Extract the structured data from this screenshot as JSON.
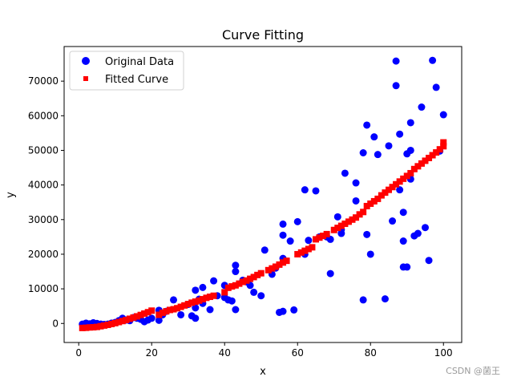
{
  "chart_data": {
    "type": "scatter",
    "title": "Curve Fitting",
    "xlabel": "x",
    "ylabel": "y",
    "xlim": [
      -4,
      105
    ],
    "ylim": [
      -5500,
      80000
    ],
    "x_ticks": [
      0,
      20,
      40,
      60,
      80,
      100
    ],
    "y_ticks": [
      0,
      10000,
      20000,
      30000,
      40000,
      50000,
      60000,
      70000
    ],
    "y_tick_labels": [
      "0",
      "10000",
      "20000",
      "30000",
      "40000",
      "50000",
      "60000",
      "70000"
    ],
    "legend_position": "top-left",
    "series": [
      {
        "name": "Original Data",
        "marker": "circle",
        "color": "#0000ff",
        "points": [
          [
            1,
            -200
          ],
          [
            2,
            100
          ],
          [
            3,
            -100
          ],
          [
            4,
            200
          ],
          [
            5,
            0
          ],
          [
            6,
            -200
          ],
          [
            7,
            -300
          ],
          [
            8,
            -200
          ],
          [
            9,
            100
          ],
          [
            10,
            300
          ],
          [
            11,
            800
          ],
          [
            12,
            1500
          ],
          [
            13,
            1000
          ],
          [
            14,
            800
          ],
          [
            15,
            1700
          ],
          [
            16,
            1500
          ],
          [
            17,
            1200
          ],
          [
            18,
            500
          ],
          [
            19,
            1000
          ],
          [
            20,
            1500
          ],
          [
            22,
            900
          ],
          [
            22,
            3800
          ],
          [
            23,
            2500
          ],
          [
            24,
            3500
          ],
          [
            26,
            6800
          ],
          [
            28,
            2500
          ],
          [
            30,
            5500
          ],
          [
            31,
            2200
          ],
          [
            32,
            1500
          ],
          [
            32,
            4500
          ],
          [
            32,
            9600
          ],
          [
            33,
            7000
          ],
          [
            34,
            5800
          ],
          [
            34,
            10400
          ],
          [
            36,
            4000
          ],
          [
            37,
            12300
          ],
          [
            38,
            8000
          ],
          [
            40,
            7500
          ],
          [
            40,
            11000
          ],
          [
            41,
            6800
          ],
          [
            42,
            6500
          ],
          [
            43,
            4000
          ],
          [
            43,
            15000
          ],
          [
            43,
            16800
          ],
          [
            45,
            12500
          ],
          [
            46,
            12000
          ],
          [
            47,
            11000
          ],
          [
            48,
            9000
          ],
          [
            50,
            8000
          ],
          [
            51,
            21200
          ],
          [
            53,
            14200
          ],
          [
            54,
            16000
          ],
          [
            55,
            3200
          ],
          [
            56,
            3500
          ],
          [
            56,
            18800
          ],
          [
            56,
            25500
          ],
          [
            56,
            28700
          ],
          [
            58,
            23800
          ],
          [
            59,
            3900
          ],
          [
            60,
            29400
          ],
          [
            62,
            20000
          ],
          [
            62,
            38600
          ],
          [
            63,
            24000
          ],
          [
            65,
            38300
          ],
          [
            66,
            25000
          ],
          [
            68,
            25000
          ],
          [
            69,
            14400
          ],
          [
            69,
            24300
          ],
          [
            71,
            30800
          ],
          [
            72,
            26000
          ],
          [
            72,
            27100
          ],
          [
            73,
            43400
          ],
          [
            76,
            40600
          ],
          [
            76,
            35400
          ],
          [
            78,
            49300
          ],
          [
            78,
            6800
          ],
          [
            79,
            57300
          ],
          [
            79,
            25700
          ],
          [
            80,
            20000
          ],
          [
            81,
            53900
          ],
          [
            82,
            48800
          ],
          [
            84,
            7100
          ],
          [
            85,
            51300
          ],
          [
            86,
            29600
          ],
          [
            87,
            75800
          ],
          [
            87,
            68700
          ],
          [
            88,
            38600
          ],
          [
            88,
            54700
          ],
          [
            89,
            23800
          ],
          [
            89,
            32100
          ],
          [
            89,
            16300
          ],
          [
            90,
            16300
          ],
          [
            90,
            49000
          ],
          [
            91,
            50000
          ],
          [
            91,
            58000
          ],
          [
            91,
            41700
          ],
          [
            92,
            25300
          ],
          [
            93,
            26000
          ],
          [
            94,
            62500
          ],
          [
            95,
            27700
          ],
          [
            96,
            18200
          ],
          [
            97,
            76000
          ],
          [
            98,
            68200
          ],
          [
            99,
            49800
          ],
          [
            100,
            60300
          ]
        ]
      },
      {
        "name": "Fitted Curve",
        "marker": "square",
        "color": "#ff0000",
        "points": [
          [
            1,
            -1300
          ],
          [
            2,
            -1250
          ],
          [
            3,
            -1150
          ],
          [
            4,
            -1100
          ],
          [
            5,
            -1000
          ],
          [
            6,
            -800
          ],
          [
            7,
            -600
          ],
          [
            8,
            -400
          ],
          [
            9,
            -150
          ],
          [
            10,
            100
          ],
          [
            11,
            400
          ],
          [
            12,
            700
          ],
          [
            13,
            1000
          ],
          [
            14,
            1350
          ],
          [
            15,
            1700
          ],
          [
            16,
            2050
          ],
          [
            17,
            2450
          ],
          [
            18,
            2850
          ],
          [
            19,
            3250
          ],
          [
            20,
            3700
          ],
          [
            22,
            2500
          ],
          [
            23,
            3100
          ],
          [
            24,
            3500
          ],
          [
            25,
            3900
          ],
          [
            26,
            4100
          ],
          [
            27,
            4400
          ],
          [
            28,
            4800
          ],
          [
            29,
            5200
          ],
          [
            30,
            5600
          ],
          [
            31,
            6000
          ],
          [
            32,
            6300
          ],
          [
            33,
            6600
          ],
          [
            34,
            7000
          ],
          [
            35,
            7400
          ],
          [
            36,
            7700
          ],
          [
            37,
            8000
          ],
          [
            40,
            9000
          ],
          [
            41,
            10300
          ],
          [
            42,
            10700
          ],
          [
            43,
            11000
          ],
          [
            44,
            11500
          ],
          [
            45,
            12000
          ],
          [
            46,
            12400
          ],
          [
            47,
            12900
          ],
          [
            48,
            13400
          ],
          [
            49,
            14000
          ],
          [
            50,
            14500
          ],
          [
            52,
            15400
          ],
          [
            53,
            15900
          ],
          [
            54,
            16400
          ],
          [
            55,
            17000
          ],
          [
            56,
            17600
          ],
          [
            57,
            18100
          ],
          [
            60,
            20000
          ],
          [
            61,
            20500
          ],
          [
            62,
            21000
          ],
          [
            63,
            21500
          ],
          [
            64,
            22000
          ],
          [
            65,
            24300
          ],
          [
            66,
            24800
          ],
          [
            67,
            25300
          ],
          [
            68,
            25800
          ],
          [
            70,
            27000
          ],
          [
            71,
            27600
          ],
          [
            72,
            28200
          ],
          [
            73,
            28800
          ],
          [
            74,
            29400
          ],
          [
            75,
            30000
          ],
          [
            76,
            30600
          ],
          [
            77,
            31500
          ],
          [
            78,
            32200
          ],
          [
            79,
            33900
          ],
          [
            80,
            34600
          ],
          [
            81,
            35300
          ],
          [
            82,
            36000
          ],
          [
            83,
            37000
          ],
          [
            84,
            37800
          ],
          [
            85,
            38600
          ],
          [
            86,
            39400
          ],
          [
            87,
            40200
          ],
          [
            88,
            41000
          ],
          [
            89,
            41800
          ],
          [
            90,
            42600
          ],
          [
            91,
            43400
          ],
          [
            92,
            44600
          ],
          [
            93,
            45400
          ],
          [
            94,
            46200
          ],
          [
            95,
            47000
          ],
          [
            96,
            47800
          ],
          [
            97,
            48600
          ],
          [
            98,
            49400
          ],
          [
            99,
            50300
          ],
          [
            100,
            51200
          ],
          [
            100,
            52300
          ]
        ]
      }
    ]
  },
  "watermark": "CSDN @菌王"
}
